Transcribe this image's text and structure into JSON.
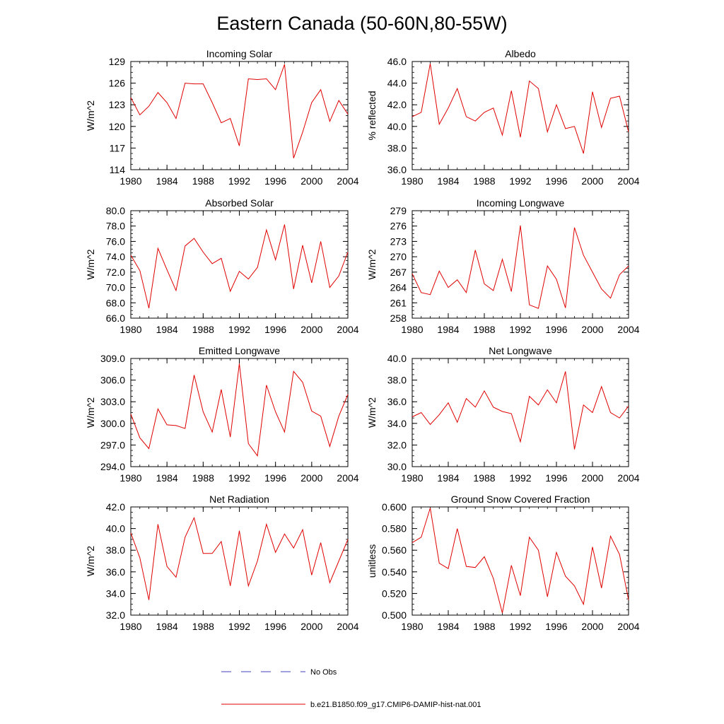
{
  "title": "Eastern Canada (50-60N,80-55W)",
  "legend": {
    "placement": "bottom-center",
    "entries": [
      {
        "label": "No Obs",
        "color": "#4040c0",
        "dash": true
      },
      {
        "label": "b.e21.B1850.f09_g17.CMIP6-DAMIP-hist-nat.001",
        "color": "#e00000",
        "dash": false
      }
    ]
  },
  "colors": {
    "series": "#e00000",
    "axis": "#000000"
  },
  "chart_data": [
    {
      "type": "line",
      "title": "Incoming Solar",
      "ylabel": "W/m^2",
      "xlim": [
        1980,
        2004
      ],
      "ylim": [
        114,
        129
      ],
      "yticks": [
        114,
        117,
        120,
        123,
        126,
        129
      ],
      "ytick_labels": [
        "114",
        "117",
        "120",
        "123",
        "126",
        "129"
      ],
      "xticks": [
        1980,
        1984,
        1988,
        1992,
        1996,
        2000,
        2004
      ],
      "xtick_labels": [
        "1980",
        "1984",
        "1988",
        "1992",
        "1996",
        "2000",
        "2004"
      ],
      "grid": false,
      "series": [
        {
          "x": [
            1980,
            1981,
            1982,
            1983,
            1984,
            1985,
            1986,
            1987,
            1988,
            1989,
            1990,
            1991,
            1992,
            1993,
            1994,
            1995,
            1996,
            1997,
            1998,
            1999,
            2000,
            2001,
            2002,
            2003,
            2004
          ],
          "y": [
            124.0,
            121.6,
            122.8,
            124.7,
            123.3,
            121.1,
            126.0,
            125.9,
            125.9,
            123.3,
            120.5,
            121.1,
            117.3,
            126.6,
            126.5,
            126.6,
            125.1,
            128.6,
            115.6,
            119.2,
            123.3,
            125.1,
            120.7,
            123.6,
            121.7
          ]
        }
      ]
    },
    {
      "type": "line",
      "title": "Albedo",
      "ylabel": "% reflected",
      "xlim": [
        1980,
        2004
      ],
      "ylim": [
        36,
        46
      ],
      "yticks": [
        36,
        38,
        40,
        42,
        44,
        46
      ],
      "ytick_labels": [
        "36.0",
        "38.0",
        "40.0",
        "42.0",
        "44.0",
        "46.0"
      ],
      "xticks": [
        1980,
        1984,
        1988,
        1992,
        1996,
        2000,
        2004
      ],
      "xtick_labels": [
        "1980",
        "1984",
        "1988",
        "1992",
        "1996",
        "2000",
        "2004"
      ],
      "grid": false,
      "series": [
        {
          "x": [
            1980,
            1981,
            1982,
            1983,
            1984,
            1985,
            1986,
            1987,
            1988,
            1989,
            1990,
            1991,
            1992,
            1993,
            1994,
            1995,
            1996,
            1997,
            1998,
            1999,
            2000,
            2001,
            2002,
            2003,
            2004
          ],
          "y": [
            40.9,
            41.3,
            45.8,
            40.2,
            41.7,
            43.5,
            40.9,
            40.5,
            41.3,
            41.7,
            39.2,
            43.3,
            39.0,
            44.2,
            43.5,
            39.5,
            42.0,
            39.8,
            40.0,
            37.5,
            43.2,
            39.9,
            42.6,
            42.8,
            39.5
          ]
        }
      ]
    },
    {
      "type": "line",
      "title": "Absorbed Solar",
      "ylabel": "W/m^2",
      "xlim": [
        1980,
        2004
      ],
      "ylim": [
        66,
        80
      ],
      "yticks": [
        66,
        68,
        70,
        72,
        74,
        76,
        78,
        80
      ],
      "ytick_labels": [
        "66.0",
        "68.0",
        "70.0",
        "72.0",
        "74.0",
        "76.0",
        "78.0",
        "80.0"
      ],
      "xticks": [
        1980,
        1984,
        1988,
        1992,
        1996,
        2000,
        2004
      ],
      "xtick_labels": [
        "1980",
        "1984",
        "1988",
        "1992",
        "1996",
        "2000",
        "2004"
      ],
      "grid": false,
      "series": [
        {
          "x": [
            1980,
            1981,
            1982,
            1983,
            1984,
            1985,
            1986,
            1987,
            1988,
            1989,
            1990,
            1991,
            1992,
            1993,
            1994,
            1995,
            1996,
            1997,
            1998,
            1999,
            2000,
            2001,
            2002,
            2003,
            2004
          ],
          "y": [
            74.2,
            72.2,
            67.3,
            75.1,
            72.3,
            69.6,
            75.4,
            76.4,
            74.6,
            73.1,
            73.8,
            69.5,
            72.1,
            71.1,
            72.6,
            77.5,
            73.6,
            78.2,
            69.8,
            75.5,
            70.6,
            76.0,
            70.0,
            71.5,
            74.6
          ]
        }
      ]
    },
    {
      "type": "line",
      "title": "Incoming Longwave",
      "ylabel": "W/m^2",
      "xlim": [
        1980,
        2004
      ],
      "ylim": [
        258,
        279
      ],
      "yticks": [
        258,
        261,
        264,
        267,
        270,
        273,
        276,
        279
      ],
      "ytick_labels": [
        "258",
        "261",
        "264",
        "267",
        "270",
        "273",
        "276",
        "279"
      ],
      "xticks": [
        1980,
        1984,
        1988,
        1992,
        1996,
        2000,
        2004
      ],
      "xtick_labels": [
        "1980",
        "1984",
        "1988",
        "1992",
        "1996",
        "2000",
        "2004"
      ],
      "grid": false,
      "series": [
        {
          "x": [
            1980,
            1981,
            1982,
            1983,
            1984,
            1985,
            1986,
            1987,
            1988,
            1989,
            1990,
            1991,
            1992,
            1993,
            1994,
            1995,
            1996,
            1997,
            1998,
            1999,
            2000,
            2001,
            2002,
            2003,
            2004
          ],
          "y": [
            266.7,
            263.0,
            262.6,
            267.2,
            264.0,
            265.5,
            263.0,
            271.3,
            264.7,
            263.4,
            269.5,
            263.2,
            276.1,
            260.6,
            259.9,
            268.2,
            265.6,
            260.0,
            275.7,
            270.3,
            267.0,
            263.7,
            261.9,
            266.5,
            268.2
          ]
        }
      ]
    },
    {
      "type": "line",
      "title": "Emitted Longwave",
      "ylabel": "W/m^2",
      "xlim": [
        1980,
        2004
      ],
      "ylim": [
        294,
        309
      ],
      "yticks": [
        294,
        297,
        300,
        303,
        306,
        309
      ],
      "ytick_labels": [
        "294.0",
        "297.0",
        "300.0",
        "303.0",
        "306.0",
        "309.0"
      ],
      "xticks": [
        1980,
        1984,
        1988,
        1992,
        1996,
        2000,
        2004
      ],
      "xtick_labels": [
        "1980",
        "1984",
        "1988",
        "1992",
        "1996",
        "2000",
        "2004"
      ],
      "grid": false,
      "series": [
        {
          "x": [
            1980,
            1981,
            1982,
            1983,
            1984,
            1985,
            1986,
            1987,
            1988,
            1989,
            1990,
            1991,
            1992,
            1993,
            1994,
            1995,
            1996,
            1997,
            1998,
            1999,
            2000,
            2001,
            2002,
            2003,
            2004
          ],
          "y": [
            301.3,
            298.0,
            296.5,
            302.0,
            299.8,
            299.7,
            299.3,
            306.7,
            301.6,
            298.8,
            304.7,
            298.1,
            308.3,
            297.2,
            295.5,
            305.3,
            301.6,
            298.8,
            307.2,
            305.7,
            301.7,
            301.0,
            296.8,
            301.0,
            304.0
          ]
        }
      ]
    },
    {
      "type": "line",
      "title": "Net Longwave",
      "ylabel": "W/m^2",
      "xlim": [
        1980,
        2004
      ],
      "ylim": [
        30,
        40
      ],
      "yticks": [
        30,
        32,
        34,
        36,
        38,
        40
      ],
      "ytick_labels": [
        "30.0",
        "32.0",
        "34.0",
        "36.0",
        "38.0",
        "40.0"
      ],
      "xticks": [
        1980,
        1984,
        1988,
        1992,
        1996,
        2000,
        2004
      ],
      "xtick_labels": [
        "1980",
        "1984",
        "1988",
        "1992",
        "1996",
        "2000",
        "2004"
      ],
      "grid": false,
      "series": [
        {
          "x": [
            1980,
            1981,
            1982,
            1983,
            1984,
            1985,
            1986,
            1987,
            1988,
            1989,
            1990,
            1991,
            1992,
            1993,
            1994,
            1995,
            1996,
            1997,
            1998,
            1999,
            2000,
            2001,
            2002,
            2003,
            2004
          ],
          "y": [
            34.6,
            35.0,
            33.9,
            34.8,
            35.9,
            34.1,
            36.3,
            35.5,
            37.0,
            35.5,
            35.1,
            34.9,
            32.3,
            36.5,
            35.7,
            37.1,
            35.9,
            38.8,
            31.6,
            35.7,
            35.0,
            37.4,
            35.0,
            34.5,
            35.6
          ]
        }
      ]
    },
    {
      "type": "line",
      "title": "Net Radiation",
      "ylabel": "W/m^2",
      "xlim": [
        1980,
        2004
      ],
      "ylim": [
        32,
        42
      ],
      "yticks": [
        32,
        34,
        36,
        38,
        40,
        42
      ],
      "ytick_labels": [
        "32.0",
        "34.0",
        "36.0",
        "38.0",
        "40.0",
        "42.0"
      ],
      "xticks": [
        1980,
        1984,
        1988,
        1992,
        1996,
        2000,
        2004
      ],
      "xtick_labels": [
        "1980",
        "1984",
        "1988",
        "1992",
        "1996",
        "2000",
        "2004"
      ],
      "grid": false,
      "series": [
        {
          "x": [
            1980,
            1981,
            1982,
            1983,
            1984,
            1985,
            1986,
            1987,
            1988,
            1989,
            1990,
            1991,
            1992,
            1993,
            1994,
            1995,
            1996,
            1997,
            1998,
            1999,
            2000,
            2001,
            2002,
            2003,
            2004
          ],
          "y": [
            39.6,
            37.3,
            33.4,
            40.4,
            36.5,
            35.5,
            39.2,
            41.0,
            37.7,
            37.7,
            38.8,
            34.7,
            39.8,
            34.7,
            37.0,
            40.4,
            37.8,
            39.5,
            38.2,
            39.9,
            35.7,
            38.7,
            35.0,
            37.0,
            39.0
          ]
        }
      ]
    },
    {
      "type": "line",
      "title": "Ground Snow Covered Fraction",
      "ylabel": "unitless",
      "xlim": [
        1980,
        2004
      ],
      "ylim": [
        0.5,
        0.6
      ],
      "yticks": [
        0.5,
        0.52,
        0.54,
        0.56,
        0.58,
        0.6
      ],
      "ytick_labels": [
        "0.500",
        "0.520",
        "0.540",
        "0.560",
        "0.580",
        "0.600"
      ],
      "xticks": [
        1980,
        1984,
        1988,
        1992,
        1996,
        2000,
        2004
      ],
      "xtick_labels": [
        "1980",
        "1984",
        "1988",
        "1992",
        "1996",
        "2000",
        "2004"
      ],
      "grid": false,
      "series": [
        {
          "x": [
            1980,
            1981,
            1982,
            1983,
            1984,
            1985,
            1986,
            1987,
            1988,
            1989,
            1990,
            1991,
            1992,
            1993,
            1994,
            1995,
            1996,
            1997,
            1998,
            1999,
            2000,
            2001,
            2002,
            2003,
            2004
          ],
          "y": [
            0.567,
            0.572,
            0.599,
            0.548,
            0.543,
            0.58,
            0.545,
            0.544,
            0.554,
            0.534,
            0.502,
            0.546,
            0.518,
            0.572,
            0.56,
            0.517,
            0.558,
            0.536,
            0.527,
            0.51,
            0.563,
            0.525,
            0.573,
            0.556,
            0.514
          ]
        }
      ]
    }
  ]
}
